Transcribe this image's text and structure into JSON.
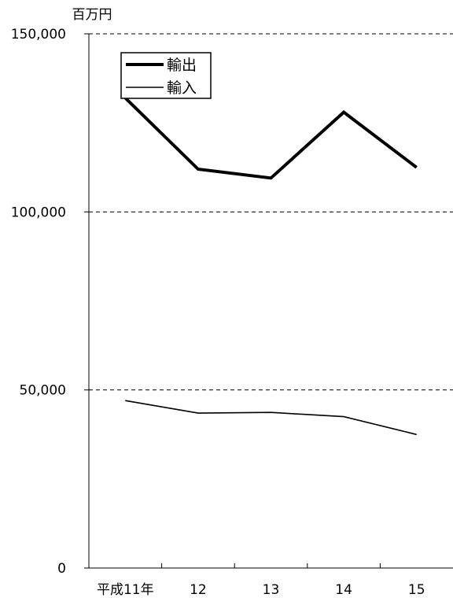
{
  "chart_data": {
    "type": "line",
    "unit_label": "百万円",
    "categories": [
      "平成11年",
      "12",
      "13",
      "14",
      "15"
    ],
    "ylim": [
      0,
      150000
    ],
    "yticks": [
      0,
      50000,
      100000,
      150000
    ],
    "ytick_labels": [
      "0",
      "50,000",
      "100,000",
      "150,000"
    ],
    "grid": "horizontal dashed",
    "legend_position": "top-left",
    "series": [
      {
        "name": "輸出",
        "values": [
          132000,
          112000,
          109500,
          128000,
          112500
        ],
        "line": "thick",
        "color": "#000000"
      },
      {
        "name": "輸入",
        "values": [
          47000,
          43500,
          43700,
          42500,
          37500
        ],
        "line": "thin",
        "color": "#000000"
      }
    ]
  }
}
